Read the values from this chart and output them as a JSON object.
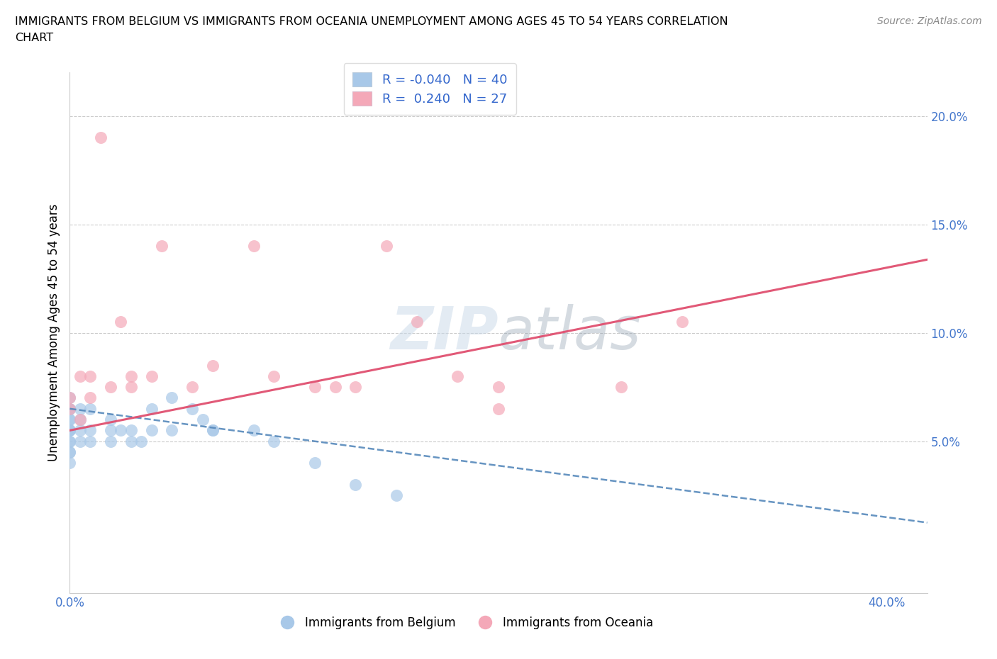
{
  "title_line1": "IMMIGRANTS FROM BELGIUM VS IMMIGRANTS FROM OCEANIA UNEMPLOYMENT AMONG AGES 45 TO 54 YEARS CORRELATION",
  "title_line2": "CHART",
  "source": "Source: ZipAtlas.com",
  "ylabel": "Unemployment Among Ages 45 to 54 years",
  "xlim": [
    0.0,
    0.42
  ],
  "ylim": [
    -0.02,
    0.22
  ],
  "blue_R": -0.04,
  "blue_N": 40,
  "pink_R": 0.24,
  "pink_N": 27,
  "blue_color": "#a8c8e8",
  "pink_color": "#f4a8b8",
  "blue_line_color": "#5588bb",
  "pink_line_color": "#e05070",
  "watermark_color": "#c8d8e8",
  "legend_label_blue": "Immigrants from Belgium",
  "legend_label_pink": "Immigrants from Oceania",
  "blue_scatter_x": [
    0.0,
    0.0,
    0.0,
    0.0,
    0.0,
    0.0,
    0.0,
    0.0,
    0.0,
    0.0,
    0.0,
    0.0,
    0.0,
    0.005,
    0.005,
    0.005,
    0.005,
    0.01,
    0.01,
    0.01,
    0.02,
    0.02,
    0.02,
    0.025,
    0.03,
    0.03,
    0.035,
    0.04,
    0.04,
    0.05,
    0.05,
    0.06,
    0.065,
    0.07,
    0.07,
    0.09,
    0.1,
    0.12,
    0.14,
    0.16
  ],
  "blue_scatter_y": [
    0.07,
    0.065,
    0.065,
    0.06,
    0.06,
    0.055,
    0.055,
    0.055,
    0.05,
    0.05,
    0.045,
    0.045,
    0.04,
    0.065,
    0.06,
    0.055,
    0.05,
    0.065,
    0.055,
    0.05,
    0.06,
    0.055,
    0.05,
    0.055,
    0.055,
    0.05,
    0.05,
    0.065,
    0.055,
    0.07,
    0.055,
    0.065,
    0.06,
    0.055,
    0.055,
    0.055,
    0.05,
    0.04,
    0.03,
    0.025
  ],
  "pink_scatter_x": [
    0.0,
    0.0,
    0.005,
    0.005,
    0.01,
    0.01,
    0.015,
    0.02,
    0.025,
    0.03,
    0.03,
    0.04,
    0.045,
    0.06,
    0.07,
    0.09,
    0.1,
    0.12,
    0.13,
    0.14,
    0.155,
    0.17,
    0.19,
    0.21,
    0.21,
    0.27,
    0.3
  ],
  "pink_scatter_y": [
    0.07,
    0.065,
    0.08,
    0.06,
    0.08,
    0.07,
    0.19,
    0.075,
    0.105,
    0.08,
    0.075,
    0.08,
    0.14,
    0.075,
    0.085,
    0.14,
    0.08,
    0.075,
    0.075,
    0.075,
    0.14,
    0.105,
    0.08,
    0.075,
    0.065,
    0.075,
    0.105
  ]
}
